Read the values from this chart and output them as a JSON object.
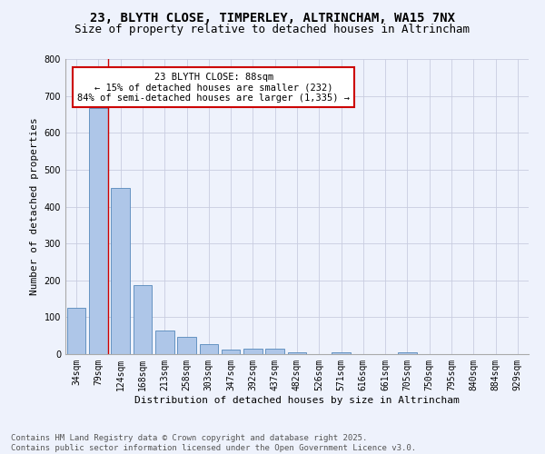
{
  "title1": "23, BLYTH CLOSE, TIMPERLEY, ALTRINCHAM, WA15 7NX",
  "title2": "Size of property relative to detached houses in Altrincham",
  "xlabel": "Distribution of detached houses by size in Altrincham",
  "ylabel": "Number of detached properties",
  "footer1": "Contains HM Land Registry data © Crown copyright and database right 2025.",
  "footer2": "Contains public sector information licensed under the Open Government Licence v3.0.",
  "bar_labels": [
    "34sqm",
    "79sqm",
    "124sqm",
    "168sqm",
    "213sqm",
    "258sqm",
    "303sqm",
    "347sqm",
    "392sqm",
    "437sqm",
    "482sqm",
    "526sqm",
    "571sqm",
    "616sqm",
    "661sqm",
    "705sqm",
    "750sqm",
    "795sqm",
    "840sqm",
    "884sqm",
    "929sqm"
  ],
  "bar_values": [
    125,
    667,
    450,
    188,
    63,
    46,
    27,
    12,
    16,
    14,
    6,
    0,
    5,
    0,
    0,
    4,
    0,
    0,
    0,
    0,
    0
  ],
  "bar_color": "#aec6e8",
  "bar_edge_color": "#5588bb",
  "vline_color": "#cc0000",
  "annotation_text": "23 BLYTH CLOSE: 88sqm\n← 15% of detached houses are smaller (232)\n84% of semi-detached houses are larger (1,335) →",
  "annotation_box_color": "#cc0000",
  "ylim": [
    0,
    800
  ],
  "yticks": [
    0,
    100,
    200,
    300,
    400,
    500,
    600,
    700,
    800
  ],
  "bg_color": "#eef2fc",
  "plot_bg_color": "#eef2fc",
  "grid_color": "#c8cce0",
  "title_fontsize": 10,
  "subtitle_fontsize": 9,
  "axis_label_fontsize": 8,
  "tick_fontsize": 7,
  "annotation_fontsize": 7.5,
  "footer_fontsize": 6.5
}
